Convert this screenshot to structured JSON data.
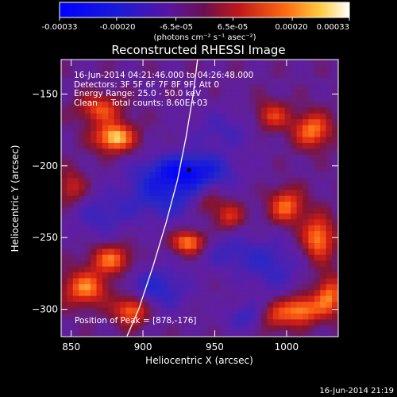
{
  "colorbar": {
    "tick_labels": [
      "-0.00033",
      "-0.00020",
      "-6.5e-05",
      "6.5e-05",
      "0.00020",
      "0.00033"
    ],
    "tick_values": [
      -0.00033,
      -0.0002,
      -6.5e-05,
      6.5e-05,
      0.0002,
      0.00033
    ],
    "range": [
      -0.00033,
      0.00033
    ],
    "units": "(photons cm⁻² s⁻¹ asec⁻²)"
  },
  "header": {
    "title": "Reconstructed RHESSI Image",
    "info_lines": [
      "16-Jun-2014 04:21:46.000 to 04:26:48.000",
      "Detectors: 3F 5F 6F 7F 8F 9F, Att 0",
      "Energy Range: 25.0 - 50.0 keV",
      "Clean     Total counts: 8.60E+03"
    ],
    "peak_text": "Position of Peak = [878,-176]"
  },
  "footer": {
    "timestamp": "16-Jun-2014 21:19"
  },
  "chart_data": {
    "type": "heatmap",
    "title": "Reconstructed RHESSI Image",
    "xlabel": "Heliocentric X (arcsec)",
    "ylabel": "Heliocentric Y (arcsec)",
    "xlim": [
      843,
      1036
    ],
    "ylim": [
      -319,
      -126
    ],
    "x_ticks": [
      850,
      900,
      950,
      1000
    ],
    "y_ticks": [
      -150,
      -200,
      -250,
      -300
    ],
    "x_tick_labels": [
      "850",
      "900",
      "950",
      "1000"
    ],
    "y_tick_labels": [
      "−150",
      "−200",
      "−250",
      "−300"
    ],
    "limb_curve": [
      [
        887,
        -323
      ],
      [
        897,
        -300
      ],
      [
        907,
        -270
      ],
      [
        916,
        -240
      ],
      [
        924,
        -210
      ],
      [
        930,
        -180
      ],
      [
        935,
        -150
      ],
      [
        938,
        -126
      ]
    ],
    "minimum_marker": [
      932,
      -203
    ],
    "colors": {
      "background": "#000000",
      "text": "#ffffff",
      "limb": "#ffffff"
    }
  }
}
